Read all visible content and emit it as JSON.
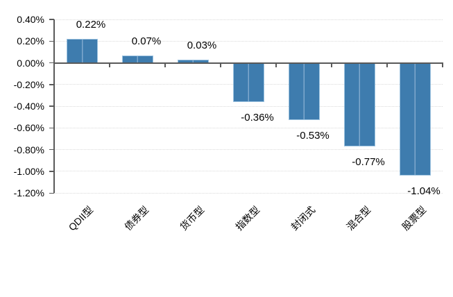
{
  "chart_data": {
    "type": "bar",
    "title": "",
    "legend": "none",
    "grid": "horizontal-dotted",
    "categories": [
      "QDII型",
      "债券型",
      "货币型",
      "指数型",
      "封闭式",
      "混合型",
      "股票型"
    ],
    "values": [
      0.22,
      0.07,
      0.03,
      -0.36,
      -0.53,
      -0.77,
      -1.04
    ],
    "data_labels": [
      "0.22%",
      "0.07%",
      "0.03%",
      "-0.36%",
      "-0.53%",
      "-0.77%",
      "-1.04%"
    ],
    "xlabel": "",
    "ylabel": "",
    "ylim": [
      -1.2,
      0.4
    ],
    "y_ticks": [
      {
        "value": 0.4,
        "label": "0.40%"
      },
      {
        "value": 0.2,
        "label": "0.20%"
      },
      {
        "value": 0.0,
        "label": "0.00%"
      },
      {
        "value": -0.2,
        "label": "-0.20%"
      },
      {
        "value": -0.4,
        "label": "-0.40%"
      },
      {
        "value": -0.6,
        "label": "-0.60%"
      },
      {
        "value": -0.8,
        "label": "-0.80%"
      },
      {
        "value": -1.0,
        "label": "-1.00%"
      },
      {
        "value": -1.2,
        "label": "-1.20%"
      }
    ],
    "colors": {
      "bar": "#3e7cae",
      "bar_center_highlight": "#7fa9cd",
      "bar_edge_highlight": "#9dc3e0",
      "axis": "#595959",
      "gridline": "#dadada",
      "text": "#000000",
      "background": "#ffffff"
    }
  }
}
